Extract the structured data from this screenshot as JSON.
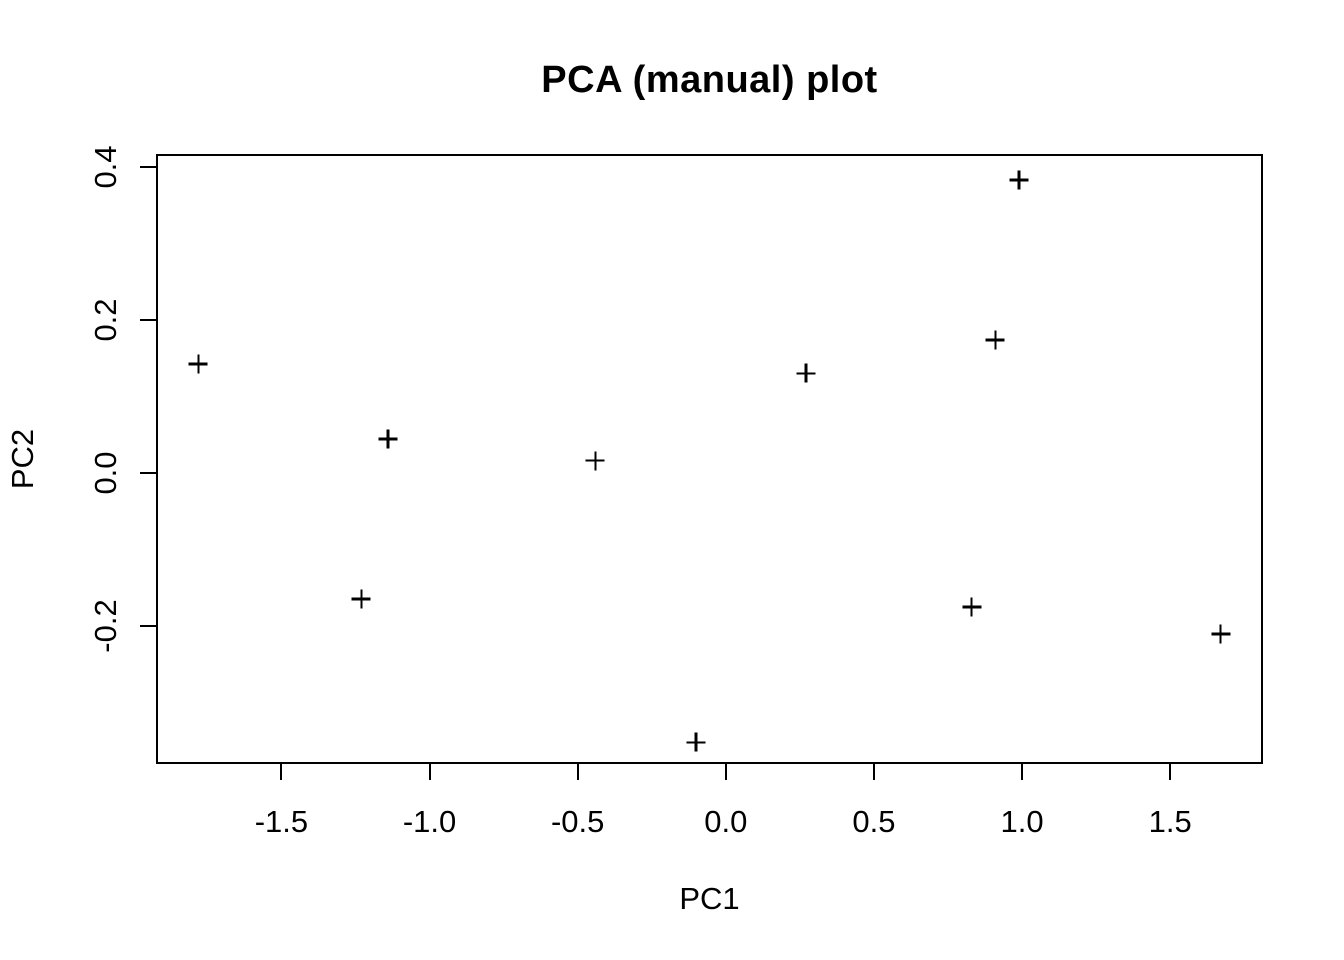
{
  "chart_data": {
    "type": "scatter",
    "title": "PCA (manual) plot",
    "xlabel": "PC1",
    "ylabel": "PC2",
    "marker": "+",
    "marker_color": "#000000",
    "axis_color": "#000000",
    "background_color": "#ffffff",
    "grid": false,
    "legend": null,
    "xlim": [
      -1.92,
      1.81
    ],
    "ylim": [
      -0.38,
      0.416
    ],
    "x_ticks": [
      -1.5,
      -1.0,
      -0.5,
      0.0,
      0.5,
      1.0,
      1.5
    ],
    "x_tick_labels": [
      "-1.5",
      "-1.0",
      "-0.5",
      "0.0",
      "0.5",
      "1.0",
      "1.5"
    ],
    "y_ticks": [
      -0.2,
      0.0,
      0.2,
      0.4
    ],
    "y_tick_labels": [
      "-0.2",
      "0.0",
      "0.2",
      "0.4"
    ],
    "points": [
      {
        "x": -1.78,
        "y": 0.142
      },
      {
        "x": -1.23,
        "y": -0.165
      },
      {
        "x": -1.14,
        "y": 0.044
      },
      {
        "x": -0.44,
        "y": 0.016
      },
      {
        "x": -0.1,
        "y": -0.353
      },
      {
        "x": 0.27,
        "y": 0.13
      },
      {
        "x": 0.83,
        "y": -0.176
      },
      {
        "x": 0.91,
        "y": 0.174
      },
      {
        "x": 0.99,
        "y": 0.383
      },
      {
        "x": 1.67,
        "y": -0.211
      }
    ]
  }
}
